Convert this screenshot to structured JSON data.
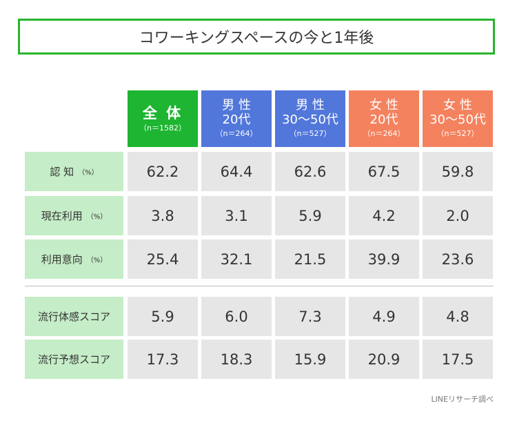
{
  "title": "コワーキングスペースの今と1年後",
  "source": "LINEリサーチ調べ",
  "colors": {
    "green": "#1db531",
    "blue": "#5277db",
    "orange": "#f4825f",
    "label_bg": "#c5edc7",
    "cell_bg": "#e6e6e6",
    "title_border": "#27b42b"
  },
  "columns": [
    {
      "line1": "全 体",
      "line2": "",
      "n": "（n＝1582）"
    },
    {
      "line1": "男 性",
      "line2": "20代",
      "n": "（n＝264）"
    },
    {
      "line1": "男 性",
      "line2": "30～50代",
      "n": "（n＝527）"
    },
    {
      "line1": "女 性",
      "line2": "20代",
      "n": "（n＝264）"
    },
    {
      "line1": "女 性",
      "line2": "30～50代",
      "n": "（n＝527）"
    }
  ],
  "rows": [
    {
      "label": "認 知",
      "unit": "（%）",
      "values": [
        "62.2",
        "64.4",
        "62.6",
        "67.5",
        "59.8"
      ]
    },
    {
      "label": "現在利用",
      "unit": "（%）",
      "values": [
        "3.8",
        "3.1",
        "5.9",
        "4.2",
        "2.0"
      ]
    },
    {
      "label": "利用意向",
      "unit": "（%）",
      "values": [
        "25.4",
        "32.1",
        "21.5",
        "39.9",
        "23.6"
      ]
    },
    {
      "label": "流行体感スコア",
      "unit": "",
      "values": [
        "5.9",
        "6.0",
        "7.3",
        "4.9",
        "4.8"
      ]
    },
    {
      "label": "流行予想スコア",
      "unit": "",
      "values": [
        "17.3",
        "18.3",
        "15.9",
        "20.9",
        "17.5"
      ]
    }
  ],
  "chart_data": {
    "type": "table",
    "title": "コワーキングスペースの今と1年後",
    "columns": [
      "全体 (n=1582)",
      "男性20代 (n=264)",
      "男性30～50代 (n=527)",
      "女性20代 (n=264)",
      "女性30～50代 (n=527)"
    ],
    "rows": [
      {
        "name": "認知 (%)",
        "values": [
          62.2,
          64.4,
          62.6,
          67.5,
          59.8
        ]
      },
      {
        "name": "現在利用 (%)",
        "values": [
          3.8,
          3.1,
          5.9,
          4.2,
          2.0
        ]
      },
      {
        "name": "利用意向 (%)",
        "values": [
          25.4,
          32.1,
          21.5,
          39.9,
          23.6
        ]
      },
      {
        "name": "流行体感スコア",
        "values": [
          5.9,
          6.0,
          7.3,
          4.9,
          4.8
        ]
      },
      {
        "name": "流行予想スコア",
        "values": [
          17.3,
          18.3,
          15.9,
          20.9,
          17.5
        ]
      }
    ]
  }
}
